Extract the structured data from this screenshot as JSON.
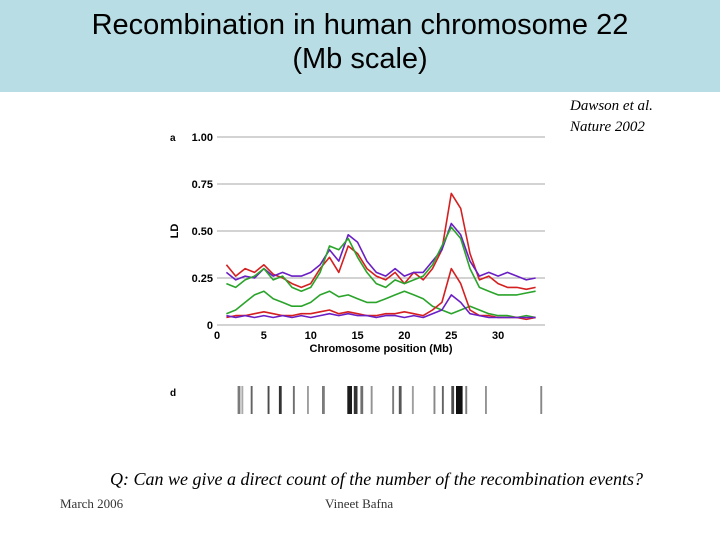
{
  "slide": {
    "title_line1": "Recombination in human chromosome 22",
    "title_line2": "(Mb scale)",
    "citation_line1": "Dawson et al.",
    "citation_line2": "Nature 2002",
    "question": "Q: Can we give a direct count of the number of the recombination events?",
    "footer_date": "March 2006",
    "footer_author": "Vineet Bafna"
  },
  "chart_data": [
    {
      "panel": "a",
      "type": "line",
      "xlabel": "Chromosome position (Mb)",
      "ylabel": "LD",
      "xlim": [
        0,
        35
      ],
      "ylim": [
        0,
        1.0
      ],
      "xticks": [
        0,
        5,
        10,
        15,
        20,
        25,
        30
      ],
      "yticks": [
        0,
        0.25,
        0.5,
        0.75,
        1.0
      ],
      "ytick_labels": [
        "0",
        "0.25",
        "0.50",
        "0.75",
        "1.00"
      ],
      "grid": true,
      "x": [
        1,
        2,
        3,
        4,
        5,
        6,
        7,
        8,
        9,
        10,
        11,
        12,
        13,
        14,
        15,
        16,
        17,
        18,
        19,
        20,
        21,
        22,
        23,
        24,
        25,
        26,
        27,
        28,
        29,
        30,
        31,
        32,
        33,
        34
      ],
      "series": [
        {
          "name": "red upper",
          "color": "#d42020",
          "values": [
            0.32,
            0.26,
            0.3,
            0.28,
            0.32,
            0.27,
            0.25,
            0.22,
            0.2,
            0.22,
            0.3,
            0.36,
            0.28,
            0.42,
            0.38,
            0.3,
            0.26,
            0.24,
            0.28,
            0.22,
            0.28,
            0.24,
            0.3,
            0.4,
            0.7,
            0.62,
            0.38,
            0.24,
            0.26,
            0.22,
            0.2,
            0.2,
            0.19,
            0.2
          ]
        },
        {
          "name": "purple upper",
          "color": "#6a1fc4",
          "values": [
            0.28,
            0.24,
            0.26,
            0.25,
            0.3,
            0.26,
            0.28,
            0.26,
            0.26,
            0.28,
            0.32,
            0.4,
            0.34,
            0.48,
            0.44,
            0.34,
            0.28,
            0.26,
            0.3,
            0.26,
            0.28,
            0.28,
            0.34,
            0.4,
            0.54,
            0.48,
            0.34,
            0.26,
            0.28,
            0.26,
            0.28,
            0.26,
            0.24,
            0.25
          ]
        },
        {
          "name": "green upper",
          "color": "#2aa42a",
          "values": [
            0.22,
            0.2,
            0.24,
            0.26,
            0.3,
            0.24,
            0.26,
            0.2,
            0.18,
            0.2,
            0.28,
            0.42,
            0.4,
            0.46,
            0.36,
            0.28,
            0.22,
            0.2,
            0.24,
            0.22,
            0.24,
            0.26,
            0.32,
            0.42,
            0.52,
            0.46,
            0.3,
            0.2,
            0.18,
            0.16,
            0.16,
            0.16,
            0.17,
            0.18
          ]
        },
        {
          "name": "green lower",
          "color": "#2aa42a",
          "values": [
            0.06,
            0.08,
            0.12,
            0.16,
            0.18,
            0.14,
            0.12,
            0.1,
            0.1,
            0.12,
            0.16,
            0.18,
            0.15,
            0.16,
            0.14,
            0.12,
            0.12,
            0.14,
            0.16,
            0.18,
            0.16,
            0.14,
            0.1,
            0.08,
            0.06,
            0.08,
            0.1,
            0.08,
            0.06,
            0.05,
            0.05,
            0.04,
            0.05,
            0.04
          ]
        },
        {
          "name": "red lower",
          "color": "#d42020",
          "values": [
            0.04,
            0.05,
            0.05,
            0.06,
            0.07,
            0.06,
            0.05,
            0.05,
            0.06,
            0.06,
            0.07,
            0.08,
            0.06,
            0.07,
            0.06,
            0.05,
            0.05,
            0.06,
            0.06,
            0.07,
            0.06,
            0.05,
            0.08,
            0.12,
            0.3,
            0.22,
            0.08,
            0.05,
            0.05,
            0.04,
            0.04,
            0.04,
            0.03,
            0.04
          ]
        },
        {
          "name": "purple lower",
          "color": "#6a1fc4",
          "values": [
            0.05,
            0.04,
            0.05,
            0.04,
            0.05,
            0.04,
            0.05,
            0.04,
            0.05,
            0.04,
            0.05,
            0.06,
            0.05,
            0.06,
            0.05,
            0.05,
            0.04,
            0.05,
            0.05,
            0.04,
            0.05,
            0.04,
            0.06,
            0.08,
            0.16,
            0.12,
            0.06,
            0.05,
            0.04,
            0.04,
            0.04,
            0.04,
            0.04,
            0.04
          ]
        }
      ]
    },
    {
      "panel": "d",
      "type": "heatmap",
      "description": "Recombination hotspot bars along chromosome",
      "xlim": [
        0,
        35
      ],
      "bands": [
        {
          "x": 2.2,
          "width": 0.3,
          "shade": 0.55
        },
        {
          "x": 2.6,
          "width": 0.2,
          "shade": 0.35
        },
        {
          "x": 3.6,
          "width": 0.2,
          "shade": 0.65
        },
        {
          "x": 5.4,
          "width": 0.2,
          "shade": 0.75
        },
        {
          "x": 6.6,
          "width": 0.3,
          "shade": 0.85
        },
        {
          "x": 8.1,
          "width": 0.2,
          "shade": 0.6
        },
        {
          "x": 9.6,
          "width": 0.2,
          "shade": 0.4
        },
        {
          "x": 11.2,
          "width": 0.3,
          "shade": 0.55
        },
        {
          "x": 13.9,
          "width": 0.5,
          "shade": 0.95
        },
        {
          "x": 14.6,
          "width": 0.4,
          "shade": 0.85
        },
        {
          "x": 15.3,
          "width": 0.3,
          "shade": 0.6
        },
        {
          "x": 16.4,
          "width": 0.2,
          "shade": 0.45
        },
        {
          "x": 18.7,
          "width": 0.2,
          "shade": 0.55
        },
        {
          "x": 19.4,
          "width": 0.3,
          "shade": 0.7
        },
        {
          "x": 20.8,
          "width": 0.2,
          "shade": 0.4
        },
        {
          "x": 23.1,
          "width": 0.2,
          "shade": 0.5
        },
        {
          "x": 24.0,
          "width": 0.2,
          "shade": 0.65
        },
        {
          "x": 25.0,
          "width": 0.3,
          "shade": 0.75
        },
        {
          "x": 25.5,
          "width": 0.7,
          "shade": 1.0
        },
        {
          "x": 26.5,
          "width": 0.2,
          "shade": 0.55
        },
        {
          "x": 28.6,
          "width": 0.2,
          "shade": 0.45
        },
        {
          "x": 34.5,
          "width": 0.2,
          "shade": 0.5
        }
      ]
    }
  ]
}
